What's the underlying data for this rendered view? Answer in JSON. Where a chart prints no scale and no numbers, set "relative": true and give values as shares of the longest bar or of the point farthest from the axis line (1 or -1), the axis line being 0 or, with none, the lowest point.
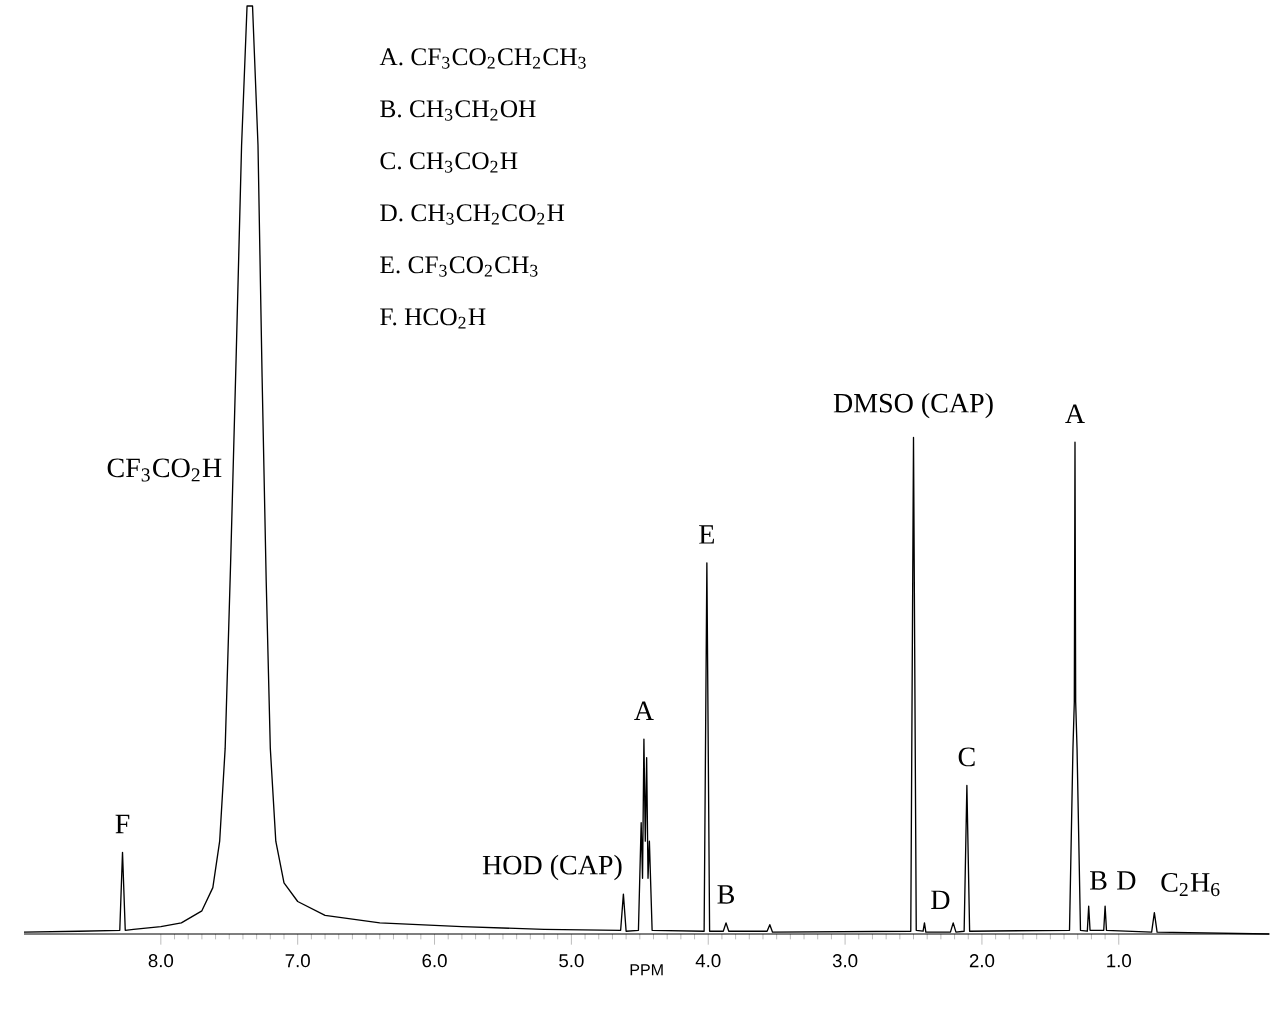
{
  "chart_data": {
    "type": "line",
    "relative": true,
    "xlabel": "PPM",
    "xlim": [
      9.0,
      -0.1
    ],
    "xticks": [
      {
        "value": 8,
        "label": "8.0"
      },
      {
        "value": 7,
        "label": "7.0"
      },
      {
        "value": 6,
        "label": "6.0"
      },
      {
        "value": 5,
        "label": "5.0"
      },
      {
        "value": 4,
        "label": "4.0"
      },
      {
        "value": 3,
        "label": "3.0"
      },
      {
        "value": 2,
        "label": "2.0"
      },
      {
        "value": 1,
        "label": "1.0"
      }
    ],
    "grid": false,
    "marker": "none",
    "line_style": "solid",
    "series": [
      {
        "color": "#000000",
        "x": [
          9.0,
          8.6,
          8.3,
          8.28,
          8.26,
          8.2,
          8.0,
          7.85,
          7.7,
          7.62,
          7.57,
          7.53,
          7.49,
          7.45,
          7.41,
          7.37,
          7.33,
          7.29,
          7.26,
          7.23,
          7.2,
          7.16,
          7.1,
          7.0,
          6.8,
          6.4,
          5.8,
          5.2,
          4.64,
          4.62,
          4.6,
          4.51,
          4.49,
          4.48,
          4.47,
          4.46,
          4.45,
          4.44,
          4.43,
          4.41,
          4.03,
          4.01,
          3.99,
          3.89,
          3.87,
          3.85,
          3.57,
          3.55,
          3.53,
          2.52,
          2.5,
          2.48,
          2.43,
          2.42,
          2.41,
          2.23,
          2.21,
          2.19,
          2.13,
          2.11,
          2.09,
          1.36,
          1.335,
          1.325,
          1.32,
          1.315,
          1.305,
          1.28,
          1.23,
          1.22,
          1.21,
          1.11,
          1.1,
          1.09,
          0.76,
          0.74,
          0.72,
          -0.1
        ],
        "values": [
          0.002,
          0.003,
          0.004,
          0.088,
          0.004,
          0.005,
          0.008,
          0.012,
          0.025,
          0.05,
          0.1,
          0.2,
          0.4,
          0.62,
          0.85,
          1.0,
          1.0,
          0.85,
          0.6,
          0.38,
          0.2,
          0.1,
          0.055,
          0.035,
          0.02,
          0.012,
          0.008,
          0.005,
          0.004,
          0.043,
          0.003,
          0.004,
          0.12,
          0.06,
          0.21,
          0.1,
          0.19,
          0.06,
          0.1,
          0.004,
          0.003,
          0.4,
          0.003,
          0.003,
          0.012,
          0.003,
          0.003,
          0.01,
          0.002,
          0.003,
          0.535,
          0.004,
          0.003,
          0.012,
          0.002,
          0.002,
          0.012,
          0.002,
          0.003,
          0.16,
          0.003,
          0.004,
          0.2,
          0.25,
          0.53,
          0.25,
          0.2,
          0.004,
          0.003,
          0.03,
          0.004,
          0.004,
          0.03,
          0.004,
          0.002,
          0.023,
          0.002,
          0.0
        ]
      }
    ],
    "annotations": [
      "A. CF$_{3}$CO$_{2}$CH$_{2}$CH$_{3}$",
      "B. CH$_{3}$CH$_{2}$OH",
      "C. CH$_{3}$CO$_{2}$H",
      "D. CH$_{3}$CH$_{2}$CO$_{2}$H",
      "E. CF$_{3}$CO$_{2}$CH$_{3}$",
      "F. HCO$_{2}$H",
      {
        "text": "CF$_{3}$CO$_{2}$H",
        "x": 7.47,
        "y": 0.5
      },
      {
        "text": "F",
        "x": 8.28,
        "y": 0.088
      },
      {
        "text": "HOD (CAP)",
        "x": 4.62,
        "y": 0.043
      },
      {
        "text": "A",
        "x": 4.47,
        "y": 0.21
      },
      {
        "text": "E",
        "x": 4.01,
        "y": 0.4
      },
      {
        "text": "B",
        "x": 3.87,
        "y": 0.012
      },
      {
        "text": "DMSO (CAP)",
        "x": 2.5,
        "y": 0.535
      },
      {
        "text": "D",
        "x": 2.42,
        "y": 0.012
      },
      {
        "text": "C",
        "x": 2.11,
        "y": 0.16
      },
      {
        "text": "A",
        "x": 1.32,
        "y": 0.53
      },
      {
        "text": "B",
        "x": 1.22,
        "y": 0.03
      },
      {
        "text": "D",
        "x": 1.1,
        "y": 0.03
      },
      {
        "text": "C$_{2}$H$_{6}$",
        "x": 0.74,
        "y": 0.023
      }
    ]
  }
}
